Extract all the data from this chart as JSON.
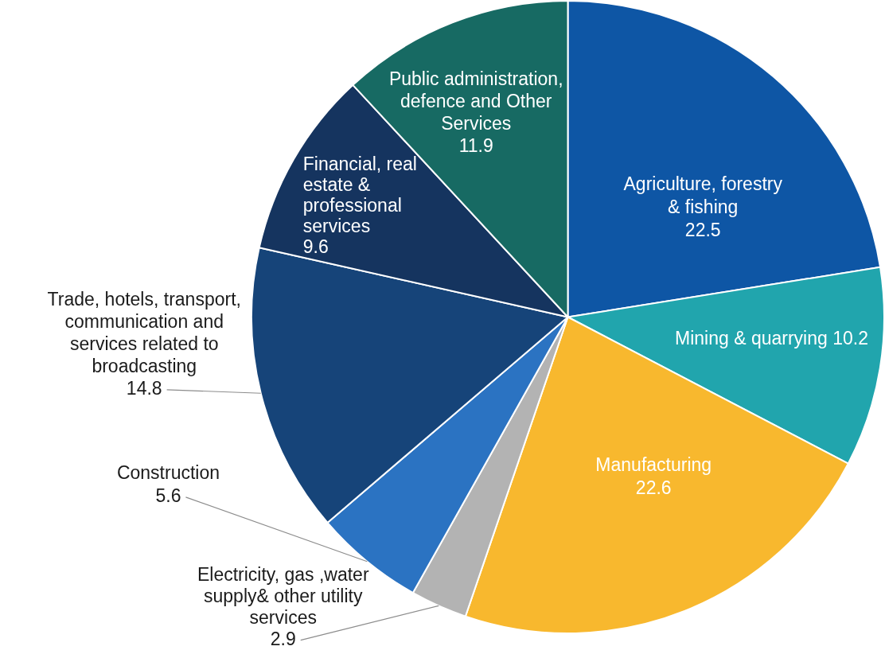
{
  "chart_data": {
    "type": "pie",
    "categories": [
      "Agriculture, forestry & fishing",
      "Mining & quarrying",
      "Manufacturing",
      "Electricity, gas ,water supply& other utility services",
      "Construction",
      "Trade, hotels, transport, communication and services related to broadcasting",
      "Financial, real estate & professional services",
      "Public administration, defence and Other Services"
    ],
    "values": [
      22.5,
      10.2,
      22.6,
      2.9,
      5.6,
      14.8,
      9.6,
      11.9
    ],
    "colors": [
      "#0e56a5",
      "#21a5ad",
      "#f8b82e",
      "#b3b3b3",
      "#2b73c2",
      "#164479",
      "#15345f",
      "#176a63"
    ],
    "data_labels": true
  }
}
